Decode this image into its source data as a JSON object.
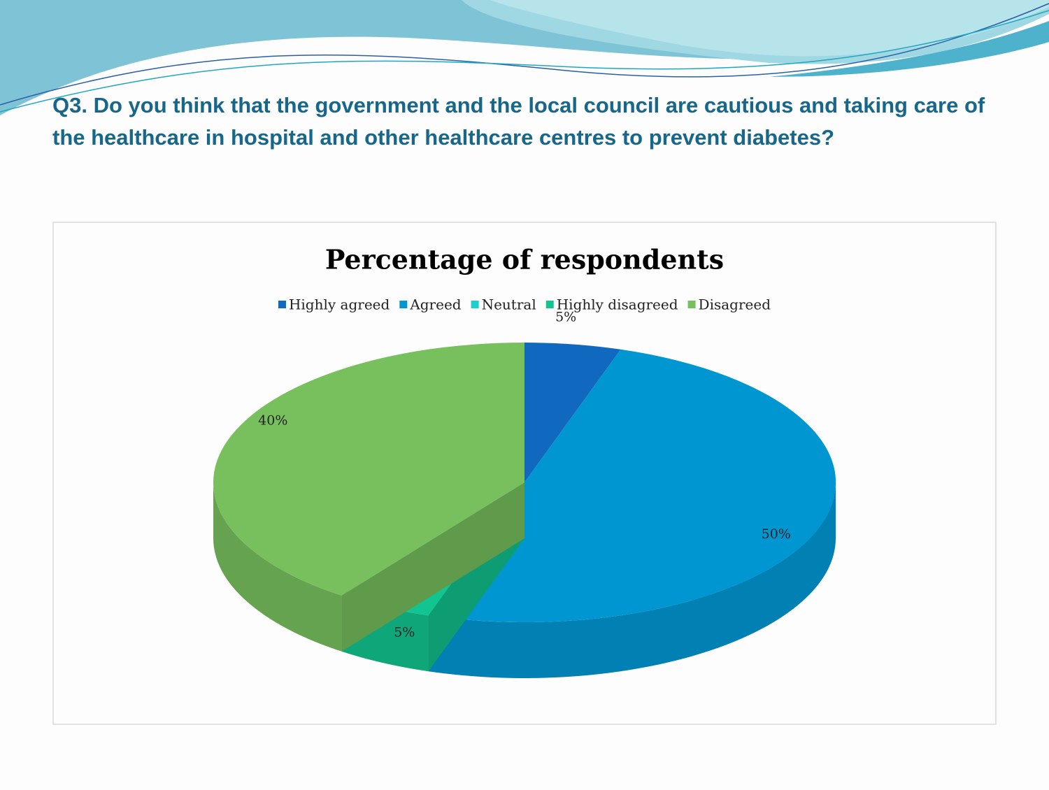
{
  "heading": "Q3. Do you think that the government and the local council are cautious and taking care of the healthcare in hospital and other healthcare centres to prevent diabetes?",
  "chart_data": {
    "type": "pie3d",
    "title": "Percentage of respondents",
    "categories": [
      "Highly agreed",
      "Agreed",
      "Neutral",
      "Highly disagreed",
      "Disagreed"
    ],
    "values": [
      5,
      50,
      0,
      5,
      40
    ],
    "value_labels": [
      "5%",
      "50%",
      null,
      "5%",
      "40%"
    ],
    "colors": [
      "#1168bf",
      "#0096d2",
      "#1ecfcf",
      "#12c48f",
      "#78c05e"
    ],
    "legend": "top"
  }
}
